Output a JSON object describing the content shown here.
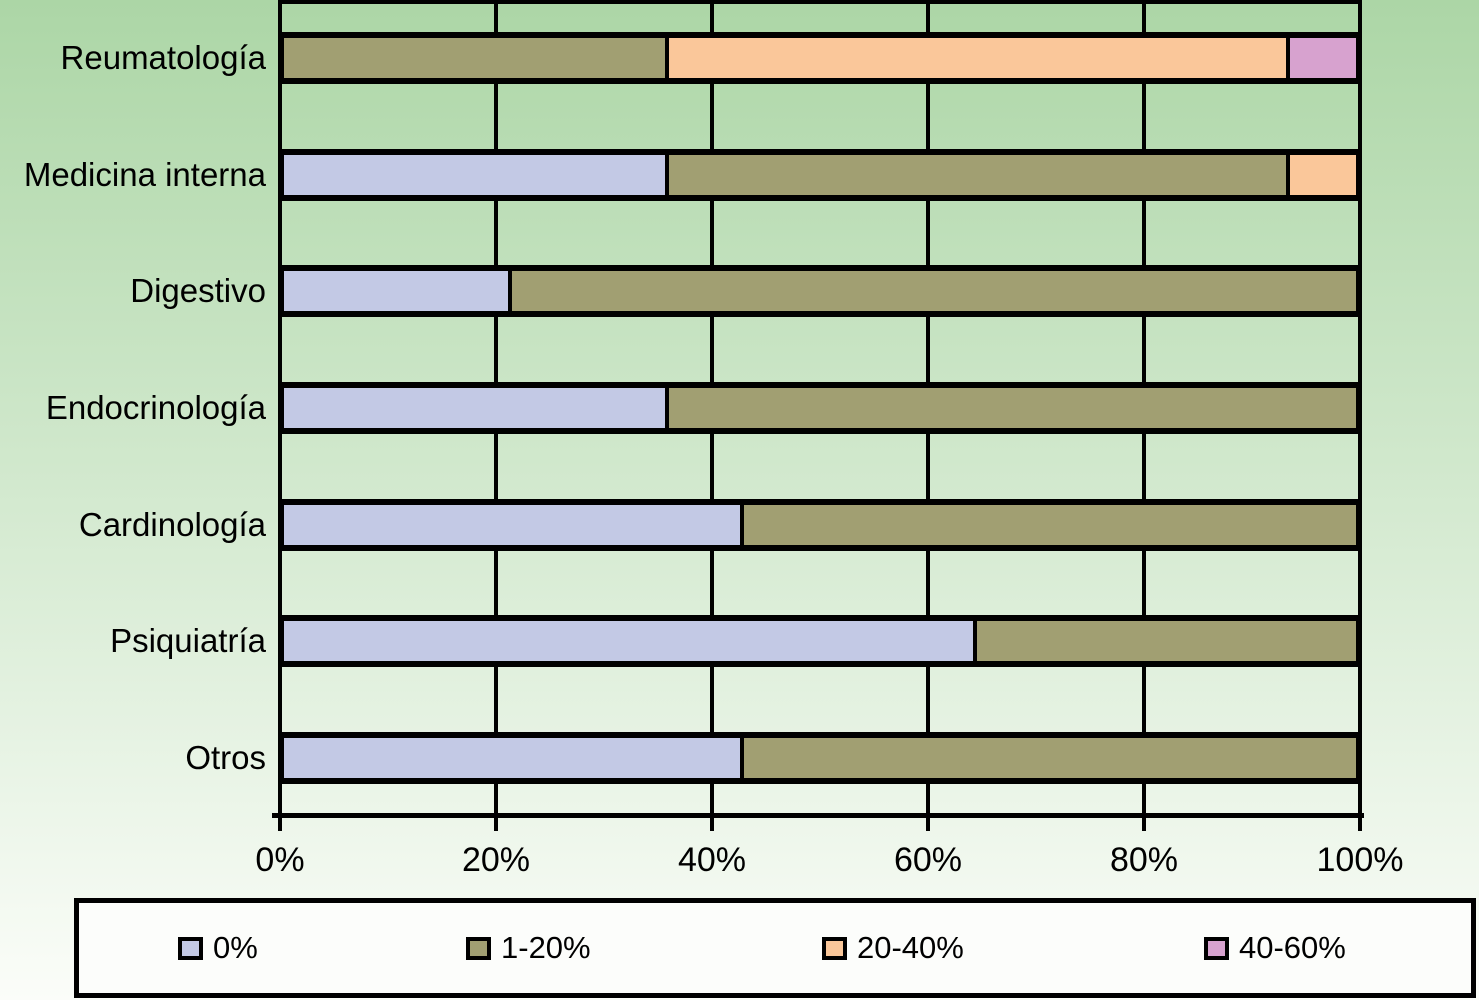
{
  "chart_data": {
    "type": "bar",
    "orientation": "horizontal",
    "stacked": true,
    "title": "",
    "xlabel": "",
    "ylabel": "",
    "categories": [
      "Reumatología",
      "Medicina interna",
      "Digestivo",
      "Endocrinología",
      "Cardinología",
      "Psiquiatría",
      "Otros"
    ],
    "series": [
      {
        "name": "0%",
        "color": "#c3c9e5",
        "values": [
          0,
          36,
          21.5,
          36,
          43,
          64.5,
          43
        ]
      },
      {
        "name": "1-20%",
        "color": "#a19f72",
        "values": [
          36,
          57.5,
          78.5,
          64,
          57,
          35.5,
          57
        ]
      },
      {
        "name": "20-40%",
        "color": "#fac79a",
        "values": [
          57.5,
          6.5,
          0,
          0,
          0,
          0,
          0
        ]
      },
      {
        "name": "40-60%",
        "color": "#d7a2cf",
        "values": [
          6.5,
          0,
          0,
          0,
          0,
          0,
          0
        ]
      }
    ],
    "x_ticks": [
      "0%",
      "20%",
      "40%",
      "60%",
      "80%",
      "100%"
    ],
    "x_tick_values": [
      0,
      20,
      40,
      60,
      80,
      100
    ],
    "xlim": [
      0,
      100
    ],
    "grid": true,
    "legend_position": "bottom",
    "legend_entries": [
      "0%",
      "1-20%",
      "20-40%",
      "40-60%"
    ]
  },
  "colors": {
    "background_top": "#acd6a6",
    "background_bottom": "#fbfdf9",
    "gridline": "#000000",
    "bar_border": "#000000",
    "legend_background": "#fcfdfb",
    "text": "#000000"
  }
}
